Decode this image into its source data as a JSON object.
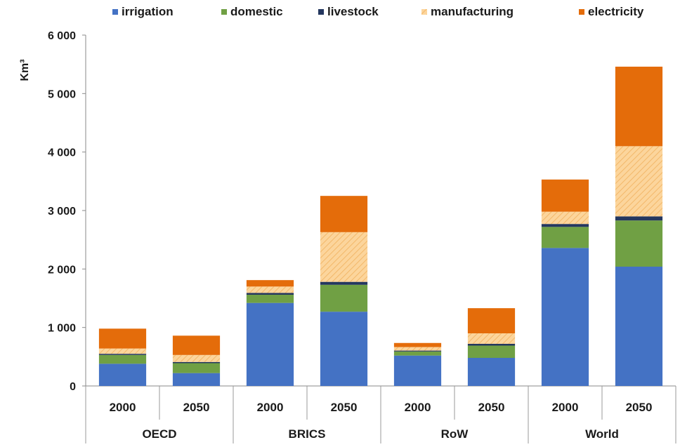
{
  "chart_data": {
    "type": "bar",
    "stacked": true,
    "ylabel": "Km³",
    "ylim": [
      0,
      6000
    ],
    "yticks": [
      0,
      1000,
      2000,
      3000,
      4000,
      5000,
      6000
    ],
    "ytick_labels": [
      "0",
      "1 000",
      "2 000",
      "3 000",
      "4 000",
      "5 000",
      "6 000"
    ],
    "grid": false,
    "legend_position": "top",
    "groups": [
      {
        "label": "OECD",
        "categories": [
          "2000",
          "2050"
        ]
      },
      {
        "label": "BRICS",
        "categories": [
          "2000",
          "2050"
        ]
      },
      {
        "label": "RoW",
        "categories": [
          "2000",
          "2050"
        ]
      },
      {
        "label": "World",
        "categories": [
          "2000",
          "2050"
        ]
      }
    ],
    "categories": [
      "2000",
      "2050",
      "2000",
      "2050",
      "2000",
      "2050",
      "2000",
      "2050"
    ],
    "series": [
      {
        "name": "irrigation",
        "color": "#4472c4",
        "pattern": "solid",
        "values": [
          380,
          220,
          1420,
          1270,
          520,
          480,
          2360,
          2040
        ]
      },
      {
        "name": "domestic",
        "color": "#70a044",
        "pattern": "solid",
        "values": [
          150,
          170,
          140,
          460,
          70,
          210,
          360,
          790
        ]
      },
      {
        "name": "livestock",
        "color": "#24375f",
        "pattern": "solid",
        "values": [
          20,
          20,
          30,
          50,
          15,
          30,
          50,
          70
        ]
      },
      {
        "name": "manufacturing",
        "color": "#fcd59c",
        "pattern": "hatched",
        "values": [
          90,
          120,
          110,
          850,
          60,
          180,
          210,
          1200
        ]
      },
      {
        "name": "electricity",
        "color": "#e46c0a",
        "pattern": "solid",
        "values": [
          340,
          330,
          110,
          620,
          70,
          430,
          550,
          1360
        ]
      }
    ]
  }
}
